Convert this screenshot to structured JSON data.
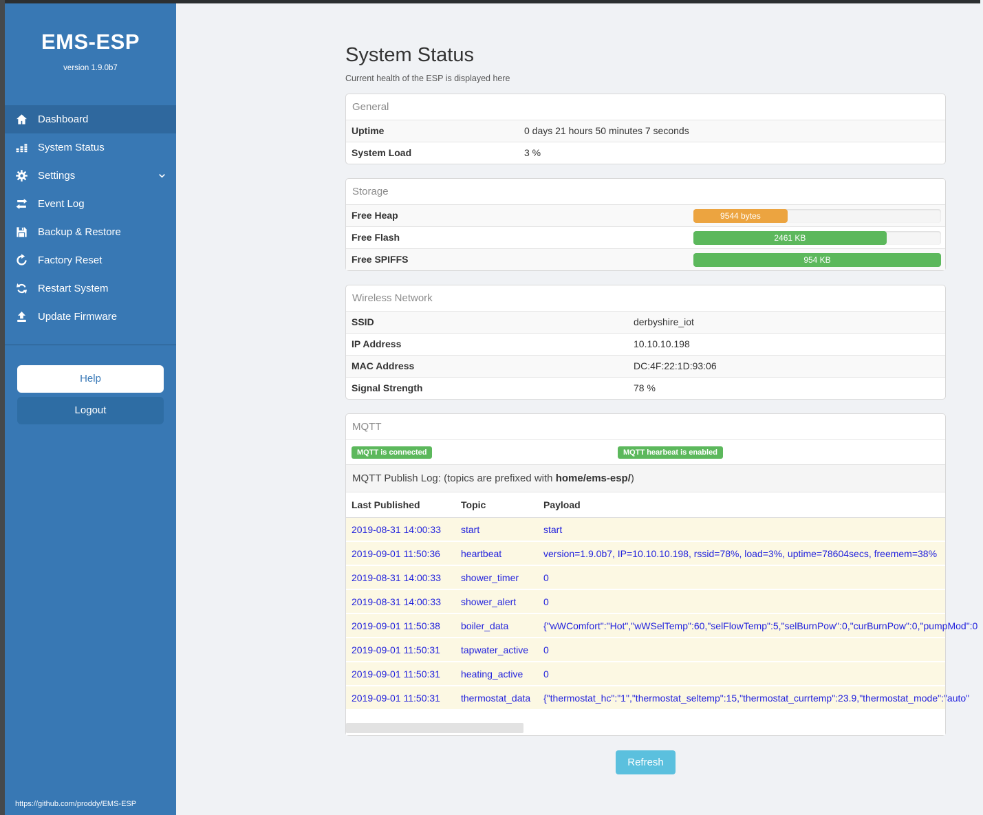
{
  "sidebar": {
    "brand": "EMS-ESP",
    "version": "version 1.9.0b7",
    "items": [
      {
        "label": "Dashboard",
        "icon": "home-icon",
        "active": true
      },
      {
        "label": "System Status",
        "icon": "system-status-icon",
        "active": false
      },
      {
        "label": "Settings",
        "icon": "gear-icon",
        "active": false,
        "chevron": true
      },
      {
        "label": "Event Log",
        "icon": "exchange-icon",
        "active": false
      },
      {
        "label": "Backup & Restore",
        "icon": "save-icon",
        "active": false
      },
      {
        "label": "Factory Reset",
        "icon": "rotate-icon",
        "active": false
      },
      {
        "label": "Restart System",
        "icon": "sync-icon",
        "active": false
      },
      {
        "label": "Update Firmware",
        "icon": "upload-icon",
        "active": false
      }
    ],
    "help_label": "Help",
    "logout_label": "Logout",
    "footer_link": "https://github.com/proddy/EMS-ESP"
  },
  "page": {
    "title": "System Status",
    "subtitle": "Current health of the ESP is displayed here",
    "refresh_label": "Refresh"
  },
  "panels": {
    "general": {
      "title": "General",
      "rows": [
        {
          "label": "Uptime",
          "value": "0 days 21 hours 50 minutes 7 seconds"
        },
        {
          "label": "System Load",
          "value": "3 %"
        }
      ]
    },
    "storage": {
      "title": "Storage",
      "rows": [
        {
          "label": "Free Heap",
          "bar_label": "9544 bytes",
          "percent": 38,
          "color": "#eca440"
        },
        {
          "label": "Free Flash",
          "bar_label": "2461 KB",
          "percent": 78,
          "color": "#5cb85c"
        },
        {
          "label": "Free SPIFFS",
          "bar_label": "954 KB",
          "percent": 100,
          "color": "#5cb85c"
        }
      ]
    },
    "wireless": {
      "title": "Wireless Network",
      "rows": [
        {
          "label": "SSID",
          "value": "derbyshire_iot"
        },
        {
          "label": "IP Address",
          "value": "10.10.10.198"
        },
        {
          "label": "MAC Address",
          "value": "DC:4F:22:1D:93:06"
        },
        {
          "label": "Signal Strength",
          "value": "78 %"
        }
      ]
    },
    "mqtt": {
      "title": "MQTT",
      "badges": [
        "MQTT is connected",
        "MQTT hearbeat is enabled"
      ],
      "publish_log": {
        "prefix": "MQTT Publish Log: (topics are prefixed with ",
        "bold": "home/ems-esp/",
        "suffix": ")"
      },
      "table": {
        "headers": [
          "Last Published",
          "Topic",
          "Payload"
        ],
        "rows": [
          {
            "time": "2019-08-31 14:00:33",
            "topic": "start",
            "payload": "start"
          },
          {
            "time": "2019-09-01 11:50:36",
            "topic": "heartbeat",
            "payload": "version=1.9.0b7, IP=10.10.10.198, rssid=78%, load=3%, uptime=78604secs, freemem=38%"
          },
          {
            "time": "2019-08-31 14:00:33",
            "topic": "shower_timer",
            "payload": "0"
          },
          {
            "time": "2019-08-31 14:00:33",
            "topic": "shower_alert",
            "payload": "0"
          },
          {
            "time": "2019-09-01 11:50:38",
            "topic": "boiler_data",
            "payload": "{\"wWComfort\":\"Hot\",\"wWSelTemp\":60,\"selFlowTemp\":5,\"selBurnPow\":0,\"curBurnPow\":0,\"pumpMod\":0"
          },
          {
            "time": "2019-09-01 11:50:31",
            "topic": "tapwater_active",
            "payload": "0"
          },
          {
            "time": "2019-09-01 11:50:31",
            "topic": "heating_active",
            "payload": "0"
          },
          {
            "time": "2019-09-01 11:50:31",
            "topic": "thermostat_data",
            "payload": "{\"thermostat_hc\":\"1\",\"thermostat_seltemp\":15,\"thermostat_currtemp\":23.9,\"thermostat_mode\":\"auto\""
          }
        ]
      }
    }
  },
  "colors": {
    "sidebar_blue": "#3878b4",
    "sidebar_active": "#2f689e",
    "logout_blue": "#2e6da4",
    "success_green": "#5cb85c",
    "warning_orange": "#eca440",
    "info_blue": "#5bc0de",
    "log_row_bg": "#fcf8e3",
    "log_text_blue": "#2222dd"
  }
}
